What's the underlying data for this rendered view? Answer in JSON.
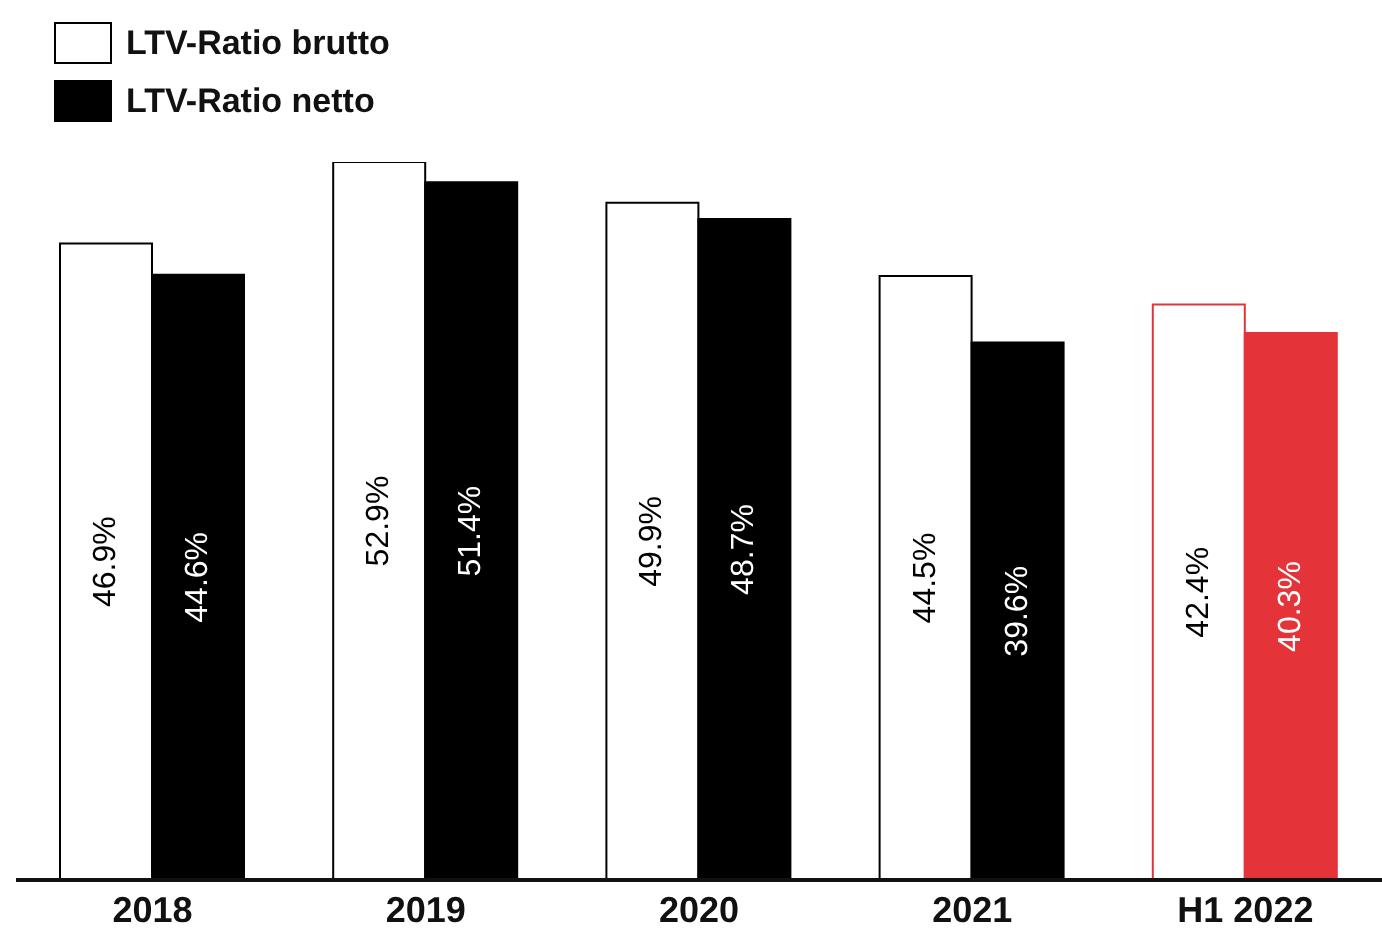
{
  "chart_data": {
    "type": "bar",
    "categories": [
      "2018",
      "2019",
      "2020",
      "2021",
      "H1 2022"
    ],
    "series": [
      {
        "name": "LTV-Ratio brutto",
        "color": "#ffffff",
        "values": [
          46.9,
          52.9,
          49.9,
          44.5,
          42.4
        ],
        "value_labels": [
          "46.9%",
          "52.9%",
          "49.9%",
          "44.5%",
          "42.4%"
        ]
      },
      {
        "name": "LTV-Ratio netto",
        "color": "#000000",
        "colors": [
          "#000000",
          "#000000",
          "#000000",
          "#000000",
          "#e4343a"
        ],
        "values": [
          44.6,
          51.4,
          48.7,
          39.6,
          40.3
        ],
        "value_labels": [
          "44.6%",
          "51.4%",
          "48.7%",
          "39.6%",
          "40.3%"
        ]
      }
    ],
    "legend": "top left"
  }
}
